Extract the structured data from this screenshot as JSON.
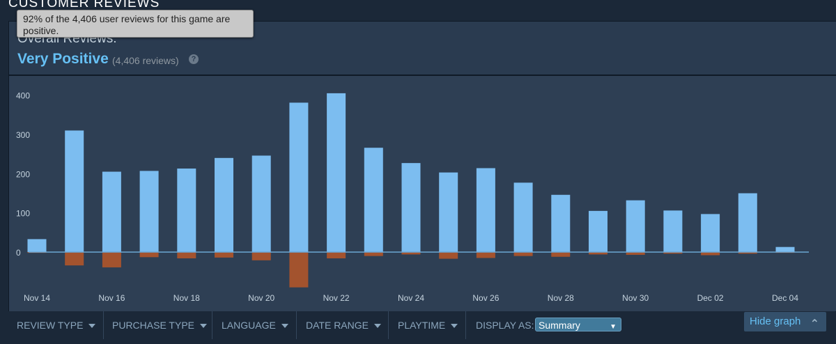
{
  "section": {
    "title": "CUSTOMER REVIEWS"
  },
  "summary": {
    "overall_label": "Overall Reviews:",
    "rating": "Very Positive",
    "count": "(4,406 reviews)",
    "help": "?"
  },
  "tooltip": {
    "text": "92% of the 4,406 user reviews for this game are positive."
  },
  "filters": [
    {
      "label": "REVIEW TYPE"
    },
    {
      "label": "PURCHASE TYPE"
    },
    {
      "label": "LANGUAGE"
    },
    {
      "label": "DATE RANGE"
    },
    {
      "label": "PLAYTIME"
    }
  ],
  "display_as": {
    "label": "DISPLAY AS:",
    "value": "Summary"
  },
  "hide_graph": {
    "label": "Hide graph"
  },
  "colors": {
    "positive": "#7cbdf0",
    "negative": "#a3532e",
    "background": "#2e3f54",
    "accent": "#66c0f4"
  },
  "chart_data": {
    "type": "bar",
    "x": [
      "Nov 14",
      "Nov 15",
      "Nov 16",
      "Nov 17",
      "Nov 18",
      "Nov 19",
      "Nov 20",
      "Nov 21",
      "Nov 22",
      "Nov 23",
      "Nov 24",
      "Nov 25",
      "Nov 26",
      "Nov 27",
      "Nov 28",
      "Nov 29",
      "Nov 30",
      "Dec 01",
      "Dec 02",
      "Dec 03",
      "Dec 04"
    ],
    "tick_labels": [
      "Nov 14",
      "Nov 16",
      "Nov 18",
      "Nov 20",
      "Nov 22",
      "Nov 24",
      "Nov 26",
      "Nov 28",
      "Nov 30",
      "Dec 02",
      "Dec 04"
    ],
    "series": [
      {
        "values": [
          33,
          310,
          205,
          207,
          213,
          240,
          246,
          381,
          405,
          266,
          227,
          203,
          214,
          177,
          146,
          105,
          132,
          106,
          97,
          150,
          13
        ]
      },
      {
        "values": [
          -2,
          -34,
          -39,
          -13,
          -16,
          -14,
          -21,
          -90,
          -16,
          -10,
          -6,
          -17,
          -15,
          -10,
          -12,
          -6,
          -7,
          -4,
          -8,
          -4,
          -2
        ]
      }
    ],
    "yticks": [
      0,
      100,
      200,
      300,
      400
    ],
    "ylim": [
      -95,
      410
    ],
    "grid": false
  }
}
